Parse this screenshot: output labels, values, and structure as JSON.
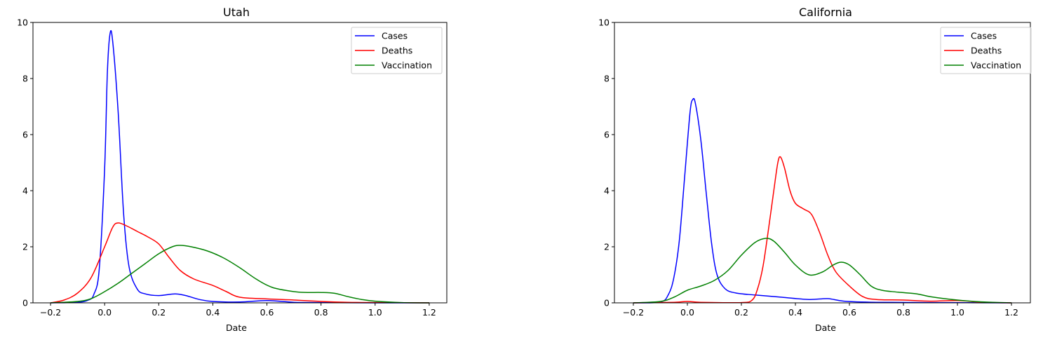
{
  "chart_data": [
    {
      "type": "line",
      "title": "Utah",
      "xlabel": "Date",
      "ylabel": "",
      "xlim": [
        -0.265,
        1.265
      ],
      "ylim": [
        0,
        10
      ],
      "xticks": [
        -0.2,
        0.0,
        0.2,
        0.4,
        0.6,
        0.8,
        1.0,
        1.2
      ],
      "xtick_labels": [
        "−0.2",
        "0.0",
        "0.2",
        "0.4",
        "0.6",
        "0.8",
        "1.0",
        "1.2"
      ],
      "yticks": [
        0,
        2,
        4,
        6,
        8,
        10
      ],
      "ytick_labels": [
        "0",
        "2",
        "4",
        "6",
        "8",
        "10"
      ],
      "grid": false,
      "legend_position": "top-right",
      "series": [
        {
          "name": "Cases",
          "color": "#0000ff",
          "points": [
            [
              -0.2,
              0
            ],
            [
              -0.1,
              0.02
            ],
            [
              -0.06,
              0.1
            ],
            [
              -0.04,
              0.3
            ],
            [
              -0.02,
              1.2
            ],
            [
              0.0,
              4.8
            ],
            [
              0.01,
              8.2
            ],
            [
              0.02,
              9.6
            ],
            [
              0.03,
              9.3
            ],
            [
              0.05,
              6.8
            ],
            [
              0.07,
              3.2
            ],
            [
              0.09,
              1.3
            ],
            [
              0.12,
              0.5
            ],
            [
              0.15,
              0.32
            ],
            [
              0.2,
              0.26
            ],
            [
              0.26,
              0.32
            ],
            [
              0.3,
              0.26
            ],
            [
              0.35,
              0.12
            ],
            [
              0.4,
              0.05
            ],
            [
              0.5,
              0.03
            ],
            [
              0.6,
              0.08
            ],
            [
              0.7,
              0.02
            ],
            [
              0.8,
              0.01
            ],
            [
              1.0,
              0
            ],
            [
              1.2,
              0
            ]
          ]
        },
        {
          "name": "Deaths",
          "color": "#ff0000",
          "points": [
            [
              -0.2,
              0
            ],
            [
              -0.15,
              0.1
            ],
            [
              -0.1,
              0.35
            ],
            [
              -0.05,
              0.9
            ],
            [
              0.0,
              2.0
            ],
            [
              0.03,
              2.7
            ],
            [
              0.05,
              2.85
            ],
            [
              0.08,
              2.75
            ],
            [
              0.12,
              2.55
            ],
            [
              0.16,
              2.35
            ],
            [
              0.2,
              2.1
            ],
            [
              0.24,
              1.6
            ],
            [
              0.28,
              1.15
            ],
            [
              0.33,
              0.85
            ],
            [
              0.4,
              0.62
            ],
            [
              0.45,
              0.4
            ],
            [
              0.5,
              0.2
            ],
            [
              0.6,
              0.14
            ],
            [
              0.7,
              0.1
            ],
            [
              0.8,
              0.05
            ],
            [
              0.9,
              0.02
            ],
            [
              1.0,
              0.01
            ],
            [
              1.2,
              0
            ]
          ]
        },
        {
          "name": "Vaccination",
          "color": "#008000",
          "points": [
            [
              -0.2,
              0
            ],
            [
              -0.1,
              0.05
            ],
            [
              -0.05,
              0.15
            ],
            [
              0.0,
              0.4
            ],
            [
              0.05,
              0.7
            ],
            [
              0.1,
              1.05
            ],
            [
              0.15,
              1.4
            ],
            [
              0.2,
              1.75
            ],
            [
              0.25,
              2.0
            ],
            [
              0.28,
              2.05
            ],
            [
              0.32,
              2.0
            ],
            [
              0.38,
              1.85
            ],
            [
              0.44,
              1.6
            ],
            [
              0.5,
              1.25
            ],
            [
              0.56,
              0.85
            ],
            [
              0.62,
              0.55
            ],
            [
              0.7,
              0.4
            ],
            [
              0.75,
              0.37
            ],
            [
              0.8,
              0.37
            ],
            [
              0.85,
              0.34
            ],
            [
              0.9,
              0.22
            ],
            [
              0.95,
              0.12
            ],
            [
              1.0,
              0.06
            ],
            [
              1.1,
              0.01
            ],
            [
              1.2,
              0
            ]
          ]
        }
      ]
    },
    {
      "type": "line",
      "title": "California",
      "xlabel": "Date",
      "ylabel": "",
      "xlim": [
        -0.27,
        1.27
      ],
      "ylim": [
        0,
        10
      ],
      "xticks": [
        -0.2,
        0.0,
        0.2,
        0.4,
        0.6,
        0.8,
        1.0,
        1.2
      ],
      "xtick_labels": [
        "−0.2",
        "0.0",
        "0.2",
        "0.4",
        "0.6",
        "0.8",
        "1.0",
        "1.2"
      ],
      "yticks": [
        0,
        2,
        4,
        6,
        8,
        10
      ],
      "ytick_labels": [
        "0",
        "2",
        "4",
        "6",
        "8",
        "10"
      ],
      "grid": false,
      "legend_position": "top-right",
      "series": [
        {
          "name": "Cases",
          "color": "#0000ff",
          "points": [
            [
              -0.2,
              0
            ],
            [
              -0.1,
              0.03
            ],
            [
              -0.07,
              0.3
            ],
            [
              -0.05,
              0.9
            ],
            [
              -0.03,
              2.2
            ],
            [
              -0.01,
              4.5
            ],
            [
              0.01,
              6.8
            ],
            [
              0.02,
              7.25
            ],
            [
              0.03,
              7.1
            ],
            [
              0.05,
              5.8
            ],
            [
              0.07,
              3.9
            ],
            [
              0.09,
              2.1
            ],
            [
              0.11,
              1.0
            ],
            [
              0.14,
              0.5
            ],
            [
              0.18,
              0.35
            ],
            [
              0.25,
              0.28
            ],
            [
              0.35,
              0.2
            ],
            [
              0.45,
              0.12
            ],
            [
              0.52,
              0.15
            ],
            [
              0.58,
              0.06
            ],
            [
              0.7,
              0.02
            ],
            [
              0.9,
              0.01
            ],
            [
              1.2,
              0
            ]
          ]
        },
        {
          "name": "Deaths",
          "color": "#ff0000",
          "points": [
            [
              -0.2,
              0
            ],
            [
              -0.05,
              0.02
            ],
            [
              0.0,
              0.05
            ],
            [
              0.05,
              0.02
            ],
            [
              0.2,
              0.01
            ],
            [
              0.24,
              0.1
            ],
            [
              0.26,
              0.5
            ],
            [
              0.28,
              1.3
            ],
            [
              0.3,
              2.6
            ],
            [
              0.32,
              4.0
            ],
            [
              0.335,
              5.0
            ],
            [
              0.345,
              5.2
            ],
            [
              0.36,
              4.8
            ],
            [
              0.38,
              4.0
            ],
            [
              0.4,
              3.55
            ],
            [
              0.43,
              3.35
            ],
            [
              0.46,
              3.15
            ],
            [
              0.49,
              2.5
            ],
            [
              0.52,
              1.7
            ],
            [
              0.55,
              1.1
            ],
            [
              0.6,
              0.6
            ],
            [
              0.65,
              0.22
            ],
            [
              0.7,
              0.12
            ],
            [
              0.8,
              0.1
            ],
            [
              0.9,
              0.06
            ],
            [
              1.0,
              0.08
            ],
            [
              1.1,
              0.02
            ],
            [
              1.2,
              0
            ]
          ]
        },
        {
          "name": "Vaccination",
          "color": "#008000",
          "points": [
            [
              -0.2,
              0
            ],
            [
              -0.1,
              0.05
            ],
            [
              -0.05,
              0.2
            ],
            [
              0.0,
              0.45
            ],
            [
              0.05,
              0.6
            ],
            [
              0.1,
              0.8
            ],
            [
              0.15,
              1.15
            ],
            [
              0.2,
              1.7
            ],
            [
              0.25,
              2.15
            ],
            [
              0.29,
              2.3
            ],
            [
              0.32,
              2.2
            ],
            [
              0.36,
              1.8
            ],
            [
              0.4,
              1.35
            ],
            [
              0.45,
              1.0
            ],
            [
              0.5,
              1.1
            ],
            [
              0.54,
              1.35
            ],
            [
              0.57,
              1.45
            ],
            [
              0.6,
              1.35
            ],
            [
              0.64,
              1.0
            ],
            [
              0.68,
              0.6
            ],
            [
              0.72,
              0.45
            ],
            [
              0.78,
              0.38
            ],
            [
              0.85,
              0.32
            ],
            [
              0.9,
              0.22
            ],
            [
              1.0,
              0.1
            ],
            [
              1.1,
              0.03
            ],
            [
              1.2,
              0
            ]
          ]
        }
      ]
    }
  ]
}
